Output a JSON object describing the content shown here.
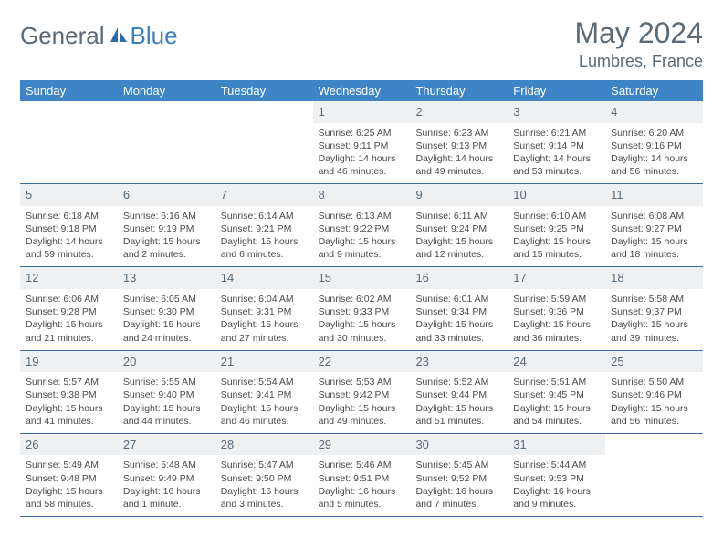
{
  "logo": {
    "text_a": "General",
    "text_b": "Blue"
  },
  "title": "May 2024",
  "location": "Lumbres, France",
  "header_bg": "#3d85c6",
  "weekdays": [
    "Sunday",
    "Monday",
    "Tuesday",
    "Wednesday",
    "Thursday",
    "Friday",
    "Saturday"
  ],
  "weeks": [
    [
      null,
      null,
      null,
      {
        "n": "1",
        "sr": "6:25 AM",
        "ss": "9:11 PM",
        "dl": "14 hours and 46 minutes."
      },
      {
        "n": "2",
        "sr": "6:23 AM",
        "ss": "9:13 PM",
        "dl": "14 hours and 49 minutes."
      },
      {
        "n": "3",
        "sr": "6:21 AM",
        "ss": "9:14 PM",
        "dl": "14 hours and 53 minutes."
      },
      {
        "n": "4",
        "sr": "6:20 AM",
        "ss": "9:16 PM",
        "dl": "14 hours and 56 minutes."
      }
    ],
    [
      {
        "n": "5",
        "sr": "6:18 AM",
        "ss": "9:18 PM",
        "dl": "14 hours and 59 minutes."
      },
      {
        "n": "6",
        "sr": "6:16 AM",
        "ss": "9:19 PM",
        "dl": "15 hours and 2 minutes."
      },
      {
        "n": "7",
        "sr": "6:14 AM",
        "ss": "9:21 PM",
        "dl": "15 hours and 6 minutes."
      },
      {
        "n": "8",
        "sr": "6:13 AM",
        "ss": "9:22 PM",
        "dl": "15 hours and 9 minutes."
      },
      {
        "n": "9",
        "sr": "6:11 AM",
        "ss": "9:24 PM",
        "dl": "15 hours and 12 minutes."
      },
      {
        "n": "10",
        "sr": "6:10 AM",
        "ss": "9:25 PM",
        "dl": "15 hours and 15 minutes."
      },
      {
        "n": "11",
        "sr": "6:08 AM",
        "ss": "9:27 PM",
        "dl": "15 hours and 18 minutes."
      }
    ],
    [
      {
        "n": "12",
        "sr": "6:06 AM",
        "ss": "9:28 PM",
        "dl": "15 hours and 21 minutes."
      },
      {
        "n": "13",
        "sr": "6:05 AM",
        "ss": "9:30 PM",
        "dl": "15 hours and 24 minutes."
      },
      {
        "n": "14",
        "sr": "6:04 AM",
        "ss": "9:31 PM",
        "dl": "15 hours and 27 minutes."
      },
      {
        "n": "15",
        "sr": "6:02 AM",
        "ss": "9:33 PM",
        "dl": "15 hours and 30 minutes."
      },
      {
        "n": "16",
        "sr": "6:01 AM",
        "ss": "9:34 PM",
        "dl": "15 hours and 33 minutes."
      },
      {
        "n": "17",
        "sr": "5:59 AM",
        "ss": "9:36 PM",
        "dl": "15 hours and 36 minutes."
      },
      {
        "n": "18",
        "sr": "5:58 AM",
        "ss": "9:37 PM",
        "dl": "15 hours and 39 minutes."
      }
    ],
    [
      {
        "n": "19",
        "sr": "5:57 AM",
        "ss": "9:38 PM",
        "dl": "15 hours and 41 minutes."
      },
      {
        "n": "20",
        "sr": "5:55 AM",
        "ss": "9:40 PM",
        "dl": "15 hours and 44 minutes."
      },
      {
        "n": "21",
        "sr": "5:54 AM",
        "ss": "9:41 PM",
        "dl": "15 hours and 46 minutes."
      },
      {
        "n": "22",
        "sr": "5:53 AM",
        "ss": "9:42 PM",
        "dl": "15 hours and 49 minutes."
      },
      {
        "n": "23",
        "sr": "5:52 AM",
        "ss": "9:44 PM",
        "dl": "15 hours and 51 minutes."
      },
      {
        "n": "24",
        "sr": "5:51 AM",
        "ss": "9:45 PM",
        "dl": "15 hours and 54 minutes."
      },
      {
        "n": "25",
        "sr": "5:50 AM",
        "ss": "9:46 PM",
        "dl": "15 hours and 56 minutes."
      }
    ],
    [
      {
        "n": "26",
        "sr": "5:49 AM",
        "ss": "9:48 PM",
        "dl": "15 hours and 58 minutes."
      },
      {
        "n": "27",
        "sr": "5:48 AM",
        "ss": "9:49 PM",
        "dl": "16 hours and 1 minute."
      },
      {
        "n": "28",
        "sr": "5:47 AM",
        "ss": "9:50 PM",
        "dl": "16 hours and 3 minutes."
      },
      {
        "n": "29",
        "sr": "5:46 AM",
        "ss": "9:51 PM",
        "dl": "16 hours and 5 minutes."
      },
      {
        "n": "30",
        "sr": "5:45 AM",
        "ss": "9:52 PM",
        "dl": "16 hours and 7 minutes."
      },
      {
        "n": "31",
        "sr": "5:44 AM",
        "ss": "9:53 PM",
        "dl": "16 hours and 9 minutes."
      },
      null
    ]
  ],
  "labels": {
    "sunrise": "Sunrise:",
    "sunset": "Sunset:",
    "daylight": "Daylight:"
  }
}
